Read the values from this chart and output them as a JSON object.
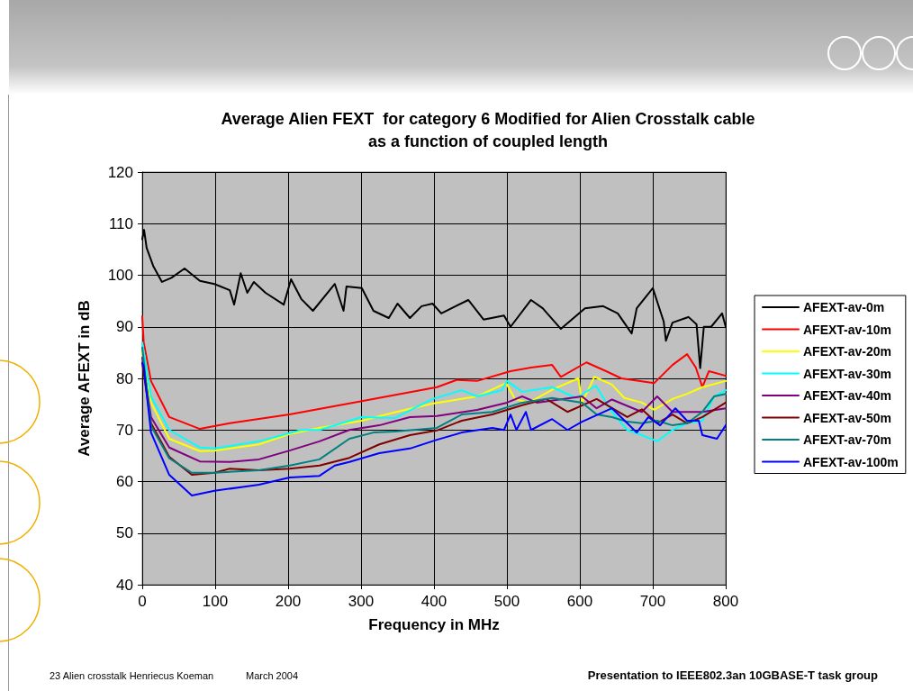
{
  "chart_data": {
    "type": "line",
    "title": "Average Alien FEXT  for category 6 Modified for Alien Crosstalk cable\nas a function of coupled length",
    "xlabel": "Frequency in MHz",
    "ylabel": "Average AFEXT in dB",
    "xlim": [
      0,
      800
    ],
    "xticks": [
      0,
      100,
      200,
      300,
      400,
      500,
      600,
      700,
      800
    ],
    "ylim": [
      40,
      120
    ],
    "yticks": [
      40,
      50,
      60,
      70,
      80,
      90,
      100,
      110,
      120
    ],
    "grid": true,
    "legend": "right",
    "marker": "none",
    "line_style": "solid",
    "annotations": [
      "23 Alien crosstalk Henriecus Koeman",
      "March 2004",
      "Presentation to IEEE802.3an 10GBASE-T task group"
    ],
    "series": [
      {
        "name": "AFEXT-av-0m",
        "color": "#000000",
        "x": [
          0,
          2.5,
          6,
          15,
          27,
          40,
          58,
          79,
          99,
          120,
          126,
          135,
          144,
          153,
          169,
          194,
          204,
          218,
          234,
          264,
          276,
          280,
          301,
          317,
          338,
          350,
          367,
          383,
          398,
          410,
          447,
          468,
          496,
          505,
          533,
          549,
          574,
          607,
          632,
          652,
          671,
          678,
          700,
          715,
          718,
          727,
          749,
          760,
          765,
          770,
          780,
          795,
          800
        ],
        "values": [
          107,
          108.8,
          105.3,
          101.8,
          98.7,
          99.5,
          101.3,
          98.9,
          98.3,
          97.1,
          94.3,
          100.4,
          96.6,
          98.7,
          96.6,
          94.3,
          99.2,
          95.4,
          93.1,
          98.3,
          93.1,
          97.8,
          97.5,
          93.1,
          91.7,
          94.5,
          91.7,
          94,
          94.5,
          92.6,
          95.2,
          91.4,
          92.2,
          90,
          95.2,
          93.6,
          89.6,
          93.6,
          94,
          92.6,
          88.7,
          93.6,
          97.5,
          91,
          87.3,
          90.8,
          91.9,
          90.5,
          82,
          90,
          90,
          92.6,
          90
        ]
      },
      {
        "name": "AFEXT-av-10m",
        "color": "#ff0000",
        "x": [
          0,
          2,
          12,
          37,
          79,
          120,
          202,
          301,
          404,
          431,
          459,
          505,
          533,
          562,
          574,
          609,
          636,
          657,
          702,
          727,
          747,
          759,
          768,
          777,
          800
        ],
        "values": [
          92,
          87,
          79.5,
          72.5,
          70.2,
          71.3,
          73,
          75.6,
          78.3,
          79.7,
          79.5,
          81.4,
          82.1,
          82.6,
          80.3,
          83.1,
          81.4,
          80,
          79.1,
          82.6,
          84.7,
          82.1,
          78.3,
          81.4,
          80.5
        ]
      },
      {
        "name": "AFEXT-av-20m",
        "color": "#ffff00",
        "x": [
          0,
          12,
          37,
          79,
          99,
          160,
          202,
          243,
          301,
          346,
          398,
          459,
          499,
          511,
          530,
          565,
          598,
          603,
          620,
          644,
          661,
          685,
          702,
          727,
          747,
          768,
          800
        ],
        "values": [
          85,
          75.3,
          68.3,
          65.9,
          66,
          67.2,
          69.2,
          70.4,
          71.8,
          73.4,
          75.1,
          76.5,
          79.1,
          76,
          75.3,
          78,
          80,
          75.3,
          80.3,
          78.8,
          76.2,
          75.3,
          73.9,
          76,
          77,
          78.3,
          79.5
        ]
      },
      {
        "name": "AFEXT-av-30m",
        "color": "#00ffff",
        "x": [
          0,
          12,
          37,
          79,
          99,
          160,
          218,
          243,
          301,
          346,
          398,
          438,
          459,
          493,
          500,
          521,
          562,
          595,
          622,
          644,
          665,
          685,
          706,
          727,
          747,
          768,
          784,
          800
        ],
        "values": [
          87,
          76.5,
          70,
          66.6,
          66.4,
          67.8,
          70,
          70,
          72.5,
          72.3,
          76,
          77.7,
          76.5,
          77.7,
          79.5,
          77.4,
          78.3,
          76.2,
          78.6,
          73.5,
          70,
          69,
          67.8,
          70,
          71.3,
          71.8,
          76.5,
          77.7
        ]
      },
      {
        "name": "AFEXT-av-40m",
        "color": "#800080",
        "x": [
          0,
          12,
          37,
          79,
          120,
          160,
          202,
          243,
          284,
          325,
          367,
          404,
          459,
          500,
          521,
          541,
          603,
          623,
          644,
          685,
          706,
          727,
          768,
          800
        ],
        "values": [
          84,
          72.5,
          66.6,
          63.9,
          63.8,
          64.3,
          66,
          67.8,
          70,
          70.9,
          72.5,
          72.7,
          73.9,
          75.3,
          76.5,
          75.3,
          76.5,
          74.2,
          75.9,
          73.5,
          76.5,
          73.5,
          73.5,
          74.2
        ]
      },
      {
        "name": "AFEXT-av-50m",
        "color": "#800000",
        "x": [
          0,
          12,
          37,
          68,
          99,
          120,
          160,
          202,
          243,
          284,
          325,
          367,
          404,
          438,
          480,
          521,
          554,
          583,
          623,
          665,
          685,
          706,
          727,
          747,
          768,
          800
        ],
        "values": [
          83,
          71.3,
          64.8,
          61.3,
          61.7,
          62.5,
          62.2,
          62.5,
          63.1,
          64.6,
          67.2,
          69,
          69.9,
          71.8,
          73,
          74.8,
          76,
          73.5,
          76,
          72.5,
          74,
          71.3,
          73,
          71.3,
          72.5,
          75.3
        ]
      },
      {
        "name": "AFEXT-av-70m",
        "color": "#008080",
        "x": [
          0,
          12,
          37,
          68,
          99,
          160,
          202,
          243,
          284,
          317,
          346,
          404,
          438,
          480,
          521,
          562,
          603,
          623,
          644,
          665,
          685,
          706,
          727,
          747,
          768,
          784,
          800
        ],
        "values": [
          86,
          70.8,
          64.5,
          61.7,
          61.7,
          62.2,
          63.1,
          64.3,
          68.3,
          69.5,
          69.7,
          70.4,
          73,
          73.5,
          75.3,
          76.2,
          75.3,
          73,
          72.5,
          71.6,
          71.3,
          71.8,
          70.9,
          71.3,
          73.5,
          76.5,
          77
        ]
      },
      {
        "name": "AFEXT-av-100m",
        "color": "#0000ff",
        "x": [
          0,
          2,
          12,
          37,
          68,
          99,
          140,
          160,
          202,
          243,
          264,
          284,
          325,
          367,
          404,
          438,
          480,
          496,
          505,
          513,
          526,
          533,
          562,
          583,
          603,
          644,
          665,
          678,
          694,
          710,
          731,
          747,
          763,
          768,
          788,
          800
        ],
        "values": [
          83,
          82.3,
          69.5,
          61.3,
          57.3,
          58.2,
          59,
          59.4,
          60.8,
          61.1,
          63.1,
          63.8,
          65.5,
          66.4,
          68.1,
          69.5,
          70.4,
          70,
          73,
          70,
          73.5,
          70,
          72.1,
          70,
          71.6,
          74.2,
          71.3,
          69.5,
          72.5,
          70.9,
          74.2,
          71.8,
          71.8,
          69,
          68.3,
          70.9
        ]
      }
    ]
  }
}
